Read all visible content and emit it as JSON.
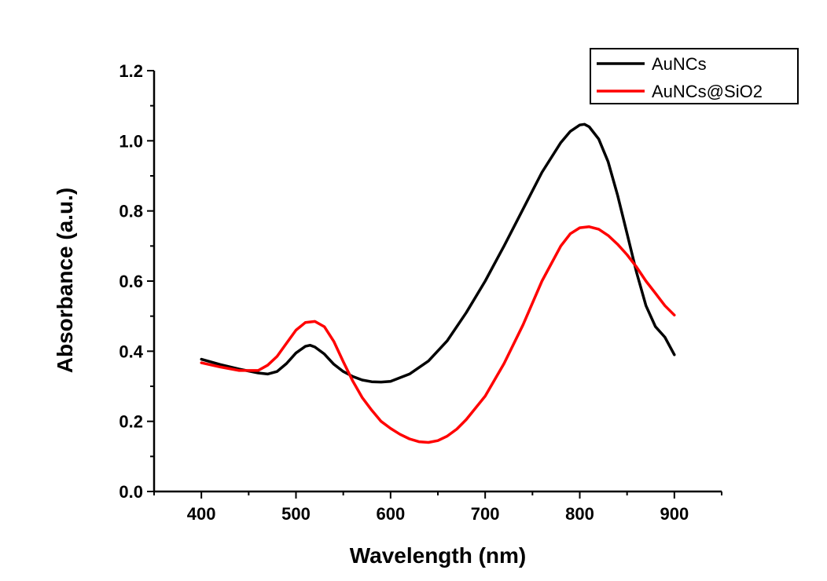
{
  "chart_data": {
    "type": "line",
    "title": "",
    "xlabel": "Wavelength (nm)",
    "ylabel": "Absorbance (a.u.)",
    "xlim": [
      350,
      950
    ],
    "ylim": [
      0.0,
      1.2
    ],
    "xticks": [
      400,
      500,
      600,
      700,
      800,
      900
    ],
    "yticks": [
      0.0,
      0.2,
      0.4,
      0.6,
      0.8,
      1.0,
      1.2
    ],
    "xtick_labels": [
      "400",
      "500",
      "600",
      "700",
      "800",
      "900"
    ],
    "ytick_labels": [
      "0.0",
      "0.2",
      "0.4",
      "0.6",
      "0.8",
      "1.0",
      "1.2"
    ],
    "grid": false,
    "legend_position": "top-right",
    "series": [
      {
        "name": "AuNCs",
        "color": "#000000",
        "x": [
          400,
          420,
          440,
          460,
          470,
          480,
          490,
          500,
          510,
          515,
          520,
          530,
          540,
          550,
          560,
          570,
          580,
          590,
          600,
          620,
          640,
          660,
          680,
          700,
          720,
          740,
          760,
          780,
          790,
          800,
          805,
          810,
          820,
          830,
          840,
          850,
          860,
          870,
          880,
          890,
          900
        ],
        "y": [
          0.377,
          0.362,
          0.349,
          0.338,
          0.335,
          0.342,
          0.365,
          0.395,
          0.414,
          0.417,
          0.412,
          0.392,
          0.363,
          0.342,
          0.328,
          0.318,
          0.313,
          0.312,
          0.314,
          0.335,
          0.372,
          0.43,
          0.51,
          0.6,
          0.7,
          0.805,
          0.91,
          0.995,
          1.027,
          1.045,
          1.047,
          1.04,
          1.005,
          0.94,
          0.845,
          0.735,
          0.625,
          0.53,
          0.47,
          0.44,
          0.39
        ]
      },
      {
        "name": "AuNCs@SiO2",
        "color": "#ff0000",
        "x": [
          400,
          420,
          440,
          460,
          470,
          480,
          490,
          500,
          510,
          520,
          530,
          540,
          550,
          560,
          570,
          580,
          590,
          600,
          610,
          620,
          630,
          640,
          650,
          660,
          670,
          680,
          700,
          720,
          740,
          760,
          780,
          790,
          800,
          810,
          820,
          830,
          840,
          850,
          860,
          870,
          880,
          890,
          900
        ],
        "y": [
          0.367,
          0.355,
          0.345,
          0.345,
          0.36,
          0.385,
          0.423,
          0.46,
          0.482,
          0.485,
          0.47,
          0.428,
          0.37,
          0.315,
          0.268,
          0.232,
          0.2,
          0.18,
          0.163,
          0.15,
          0.142,
          0.14,
          0.145,
          0.158,
          0.178,
          0.205,
          0.272,
          0.365,
          0.475,
          0.6,
          0.7,
          0.735,
          0.752,
          0.755,
          0.748,
          0.73,
          0.705,
          0.675,
          0.64,
          0.6,
          0.565,
          0.53,
          0.503
        ]
      }
    ]
  }
}
